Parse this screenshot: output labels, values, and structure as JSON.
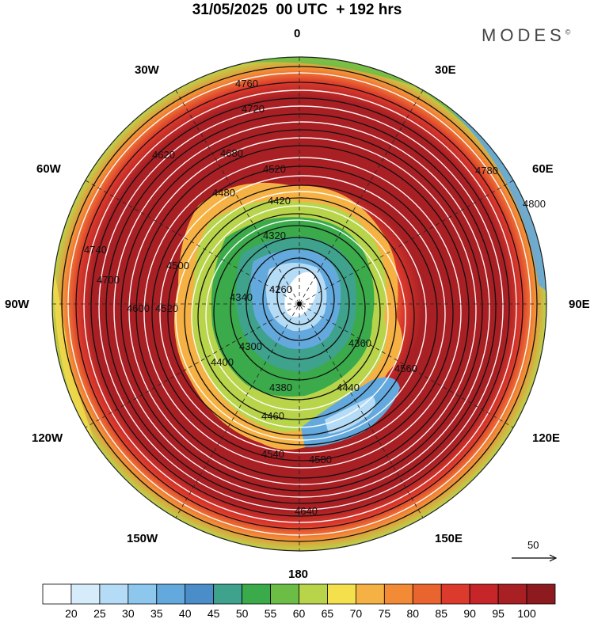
{
  "title": "31/05/2025  00 UTC  + 192 hrs",
  "brand": "MODES",
  "brand_mark": "©",
  "longitude_labels": {
    "n": "0",
    "ne30": "30E",
    "ne60": "60E",
    "e": "90E",
    "se120": "120E",
    "se150": "150E",
    "s": "180",
    "sw150": "150W",
    "sw120": "120W",
    "w": "90W",
    "nw60": "60W",
    "nw30": "30W"
  },
  "contour_labels": [
    "4760",
    "4720",
    "4680",
    "4620",
    "4520",
    "4480",
    "4420",
    "4320",
    "4360",
    "4400",
    "4440",
    "4340",
    "4500",
    "4520",
    "4560",
    "4600",
    "4640",
    "4700",
    "4740",
    "4780",
    "4800",
    "4580",
    "4540",
    "4460",
    "4380",
    "4300",
    "4260"
  ],
  "vector_scale": "50",
  "colorbar": {
    "ticks": [
      "20",
      "25",
      "30",
      "35",
      "40",
      "45",
      "50",
      "55",
      "60",
      "65",
      "70",
      "75",
      "80",
      "85",
      "90",
      "95",
      "100"
    ],
    "colors": [
      "#ffffff",
      "#d6ecfb",
      "#b5dcf6",
      "#8ec7ee",
      "#64a9dd",
      "#4a8dc9",
      "#3fa28c",
      "#3aaa4a",
      "#6cbd45",
      "#b8d44a",
      "#f4df4c",
      "#f6b144",
      "#f28a36",
      "#ea6430",
      "#dc3a2c",
      "#c6262a",
      "#a81f24",
      "#8d1a1f"
    ]
  },
  "colors": {
    "shade_outer": "#a81f24",
    "shade_core": "#ffffff"
  }
}
